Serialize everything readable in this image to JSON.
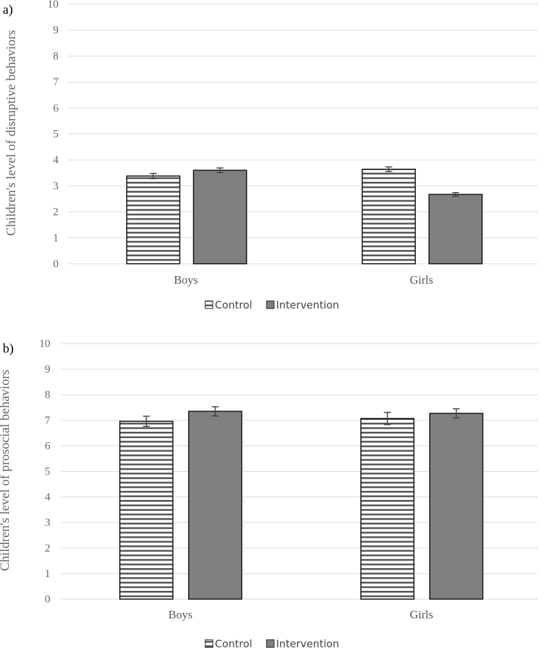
{
  "chart_data": [
    {
      "type": "bar",
      "panel_label": "a)",
      "title": "",
      "xlabel": "",
      "ylabel": "Children's level of disruptive behaviors",
      "ylim": [
        0,
        10
      ],
      "yticks": [
        0,
        1,
        2,
        3,
        4,
        5,
        6,
        7,
        8,
        9,
        10
      ],
      "grid": true,
      "legend_position": "bottom",
      "categories": [
        "Boys",
        "Girls"
      ],
      "series": [
        {
          "name": "Control",
          "pattern": "horizontal-stripes",
          "values": [
            3.38,
            3.64
          ],
          "errors": [
            0.1,
            0.09
          ]
        },
        {
          "name": "Intervention",
          "fill": "#808080",
          "values": [
            3.6,
            2.67
          ],
          "errors": [
            0.09,
            0.07
          ]
        }
      ]
    },
    {
      "type": "bar",
      "panel_label": "b)",
      "title": "",
      "xlabel": "",
      "ylabel": "Children's level of prosocial behaviors",
      "ylim": [
        0,
        10
      ],
      "yticks": [
        0,
        1,
        2,
        3,
        4,
        5,
        6,
        7,
        8,
        9,
        10
      ],
      "grid": true,
      "legend_position": "bottom",
      "categories": [
        "Boys",
        "Girls"
      ],
      "series": [
        {
          "name": "Control",
          "pattern": "horizontal-stripes",
          "values": [
            6.96,
            7.07
          ],
          "errors": [
            0.2,
            0.24
          ]
        },
        {
          "name": "Intervention",
          "fill": "#808080",
          "values": [
            7.35,
            7.27
          ],
          "errors": [
            0.18,
            0.18
          ]
        }
      ]
    }
  ],
  "colors": {
    "grid": "#d9d9d9",
    "bar_outline": "#1a1a1a",
    "intervention_fill": "#808080",
    "stripe": "#555555",
    "error_bar": "#404040"
  }
}
